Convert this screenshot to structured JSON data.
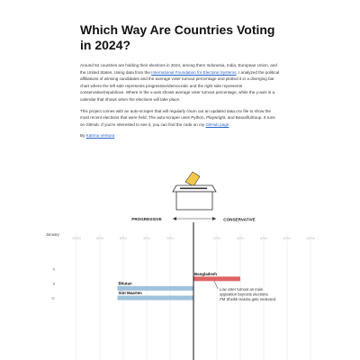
{
  "article": {
    "title": "Which Way Are Countries Voting in 2024?",
    "para1": {
      "before": "Around 64 countries are holding their elections in 2024, among them Indonesia, India, European Union, and the United States. Using data from the ",
      "link": "International Foundation for Electoral Systems",
      "after": ", I analyzed the political affiliations of winning candidates and the average voter turnout percentage and plotted it in a diverging bar chart where the left side represents progressive/democratic and the right side represents conservative/republican. Where in the x-axis shows average voter turnout percentage, while the y-axis is a calendar that shows when the elections will take place."
    },
    "para2": {
      "before": "This project comes with an auto-scraper that will regularly churn out an updated data.csv file to show the most recent elections that were held. The auto-scraper uses Python, Playwright, and BeautifulSoup. It runs on GitHub. If you're interested to see it, you can find the code on my ",
      "link": "GitHub page",
      "after": "."
    },
    "byline": {
      "prefix": "By ",
      "author": "Katrina Ventura"
    }
  },
  "chart_data": {
    "type": "bar",
    "orientation": "diverging-horizontal",
    "left_label": "PROGRESSIVE",
    "right_label": "CONSERVATIVE",
    "month_label": "January",
    "x_ticks": [
      "100%",
      "80%",
      "60%",
      "40%",
      "20%",
      "",
      "20%",
      "40%",
      "60%",
      "80%",
      "100%"
    ],
    "x_range": [
      -100,
      100
    ],
    "day_ticks": [
      "5",
      "8",
      "11"
    ],
    "series": [
      {
        "country": "Bangladesh",
        "day": 7,
        "side": "conservative",
        "turnout": 40,
        "color": "#e06464"
      },
      {
        "country": "Bhutan",
        "day": 9,
        "side": "progressive",
        "turnout": 65,
        "color": "#9fc1dc"
      },
      {
        "country": "Sint Maarten",
        "day": 11,
        "side": "progressive",
        "turnout": 65,
        "color": "#9fc1dc"
      }
    ],
    "annotation": {
      "lines": [
        "Low voter turnout as main",
        "opposition boycotts elections.",
        "PM Sheikh Hasina gets reelected."
      ]
    },
    "grid": true
  }
}
